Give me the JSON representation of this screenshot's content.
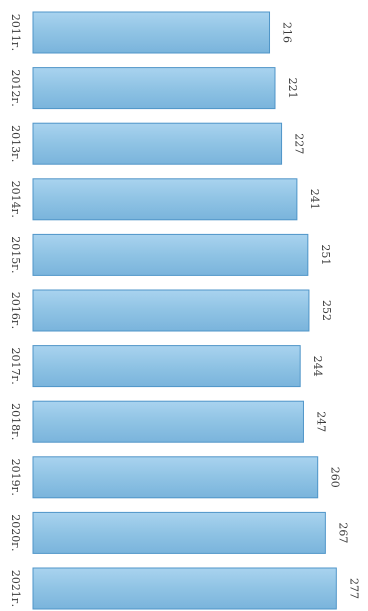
{
  "chart_data": {
    "type": "bar",
    "orientation": "horizontal",
    "categories": [
      "2011г.",
      "2012г.",
      "2013г.",
      "2014г.",
      "2015г.",
      "2016г.",
      "2017г.",
      "2018г.",
      "2019г.",
      "2020г.",
      "2021г."
    ],
    "values": [
      216,
      221,
      227,
      241,
      251,
      252,
      244,
      247,
      260,
      267,
      277
    ],
    "xlim": [
      0,
      277
    ],
    "title": "",
    "xlabel": "",
    "ylabel": "",
    "grid": false,
    "legend": "none",
    "bar_color": "#8fc3e4",
    "bar_edge_color": "#4f95c8",
    "text_rotation": "90deg clockwise"
  }
}
